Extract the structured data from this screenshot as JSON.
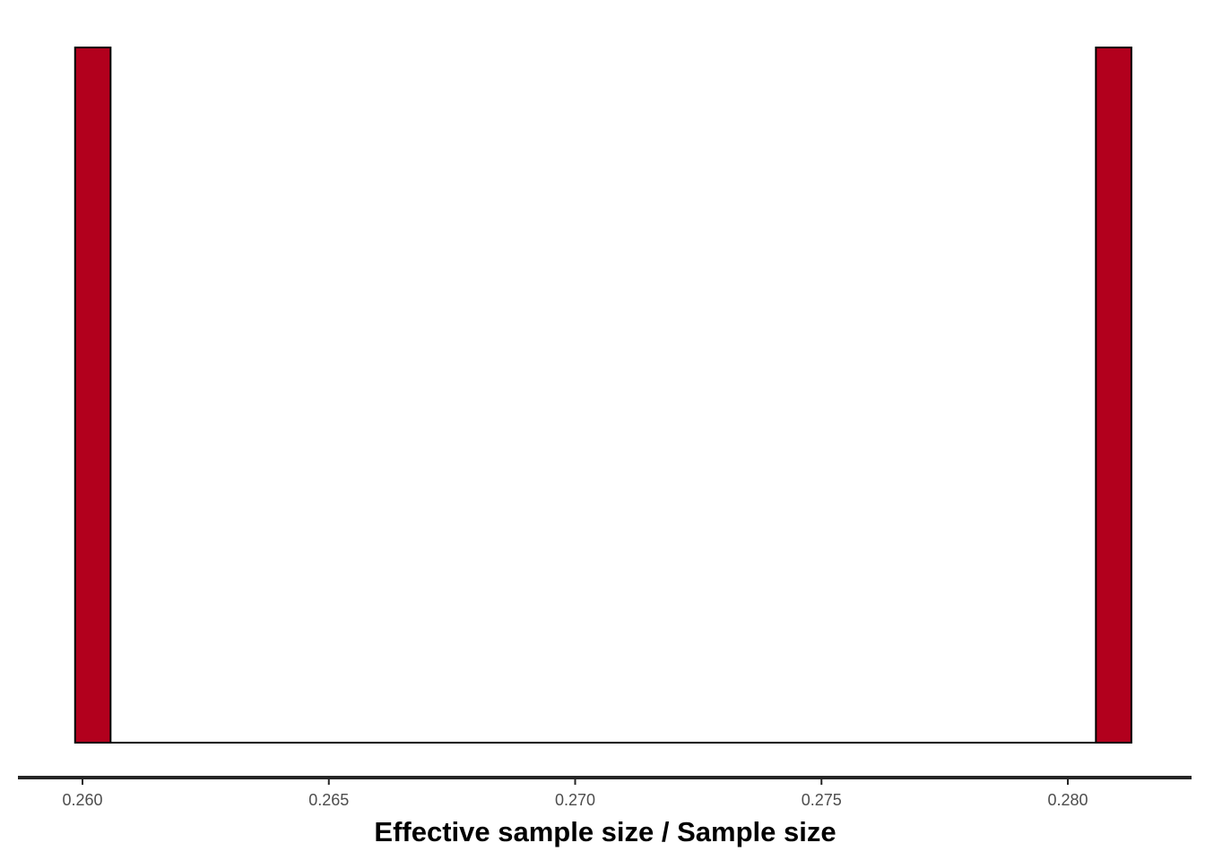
{
  "chart_data": {
    "type": "bar",
    "title": "",
    "xlabel": "Effective sample size / Sample size",
    "ylabel": "",
    "x_ticks": [
      "0.260",
      "0.265",
      "0.270",
      "0.275",
      "0.280"
    ],
    "x_tick_values": [
      0.26,
      0.265,
      0.27,
      0.275,
      0.28
    ],
    "xlim": [
      0.2589,
      0.2814
    ],
    "bins": [
      {
        "x_start": 0.25985,
        "x_end": 0.26057,
        "count": 1
      },
      {
        "x_start": 0.28057,
        "x_end": 0.28129,
        "count": 1
      }
    ],
    "baseline": {
      "x_start": 0.25985,
      "x_end": 0.28129,
      "count": 0
    },
    "ylim": [
      0,
      1
    ],
    "y_axis_visible": false,
    "grid": false,
    "bar_fill": "#b2001d",
    "bar_stroke": "#000000",
    "axis_color": "#262626"
  }
}
